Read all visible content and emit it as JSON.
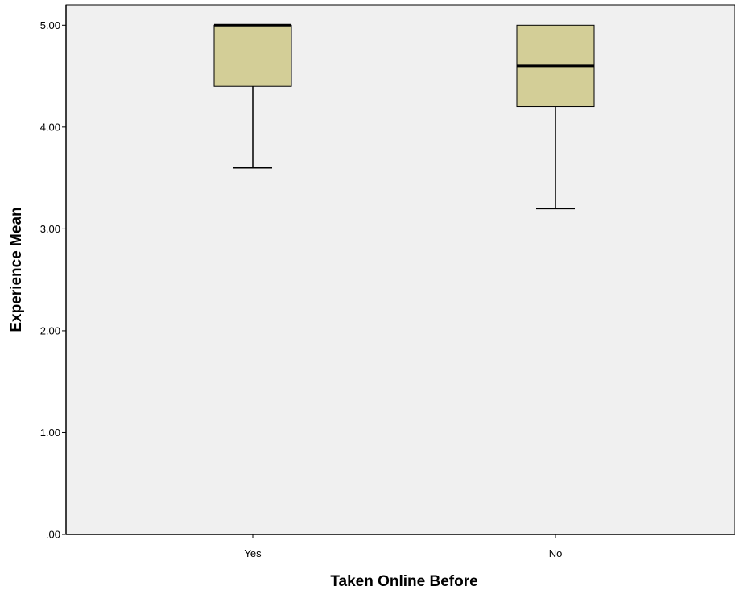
{
  "chart_data": {
    "type": "boxplot",
    "title": "",
    "xlabel": "Taken Online Before",
    "ylabel": "Experience Mean",
    "ylim": [
      0,
      5.2
    ],
    "y_ticks": [
      0,
      1,
      2,
      3,
      4,
      5
    ],
    "y_tick_labels": [
      ".00",
      "1.00",
      "2.00",
      "3.00",
      "4.00",
      "5.00"
    ],
    "categories": [
      "Yes",
      "No"
    ],
    "boxes": [
      {
        "category": "Yes",
        "min": 3.6,
        "q1": 4.4,
        "median": 5.0,
        "q3": 5.0,
        "max": 5.0
      },
      {
        "category": "No",
        "min": 3.2,
        "q1": 4.2,
        "median": 4.6,
        "q3": 5.0,
        "max": 5.0
      }
    ],
    "grid": false,
    "colors": {
      "plot_background": "#f0f0f0",
      "box_fill": "#d3ce97",
      "stroke": "#000000"
    }
  }
}
